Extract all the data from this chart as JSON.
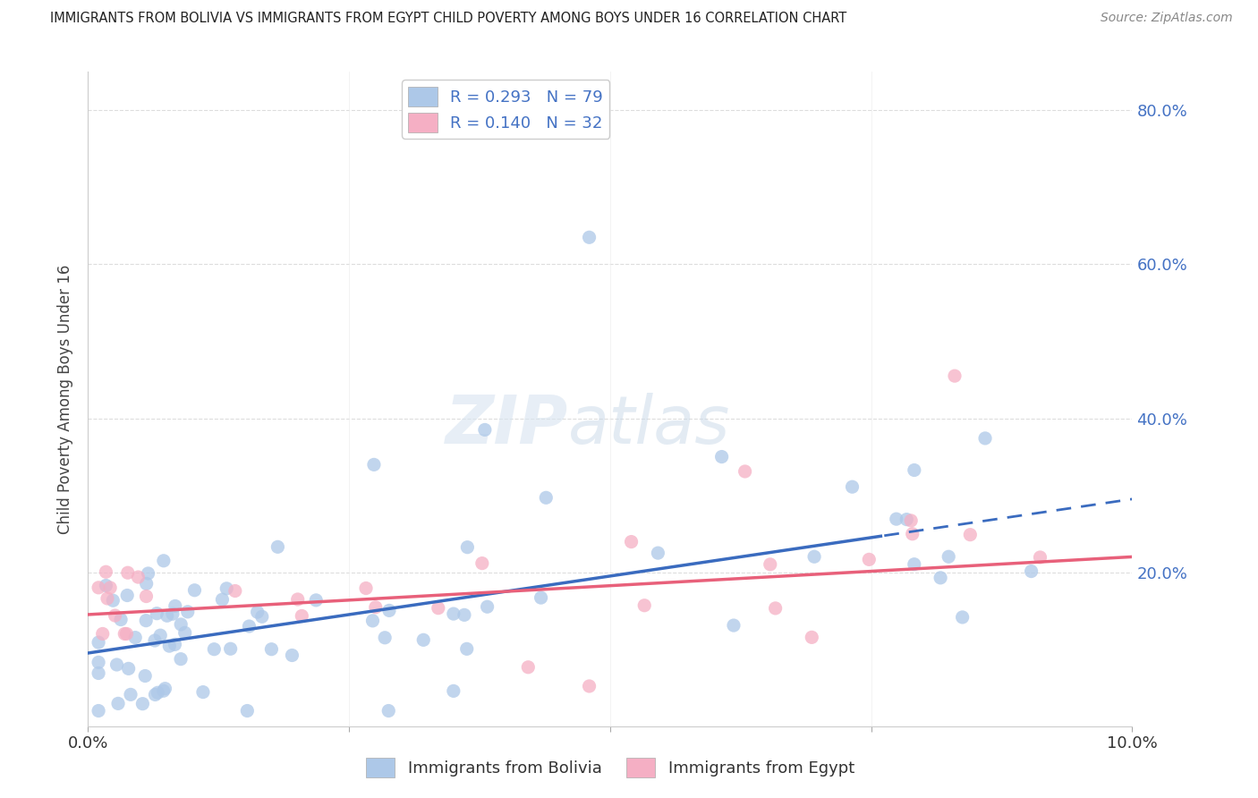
{
  "title": "IMMIGRANTS FROM BOLIVIA VS IMMIGRANTS FROM EGYPT CHILD POVERTY AMONG BOYS UNDER 16 CORRELATION CHART",
  "source": "Source: ZipAtlas.com",
  "ylabel": "Child Poverty Among Boys Under 16",
  "xlim": [
    0.0,
    0.1
  ],
  "ylim": [
    0.0,
    0.85
  ],
  "ytick_vals": [
    0.0,
    0.2,
    0.4,
    0.6,
    0.8
  ],
  "ytick_labels": [
    "",
    "20.0%",
    "40.0%",
    "60.0%",
    "80.0%"
  ],
  "bolivia_color": "#adc8e8",
  "egypt_color": "#f5afc4",
  "bolivia_line_color": "#3a6bbf",
  "egypt_line_color": "#e8607a",
  "bolivia_R": 0.293,
  "bolivia_N": 79,
  "egypt_R": 0.14,
  "egypt_N": 32,
  "watermark_zip": "ZIP",
  "watermark_atlas": "atlas",
  "background_color": "#ffffff",
  "grid_color": "#dddddd",
  "legend_color": "#4472c4",
  "bolivia_intercept": 0.095,
  "bolivia_slope": 2.0,
  "egypt_intercept": 0.145,
  "egypt_slope": 0.75
}
